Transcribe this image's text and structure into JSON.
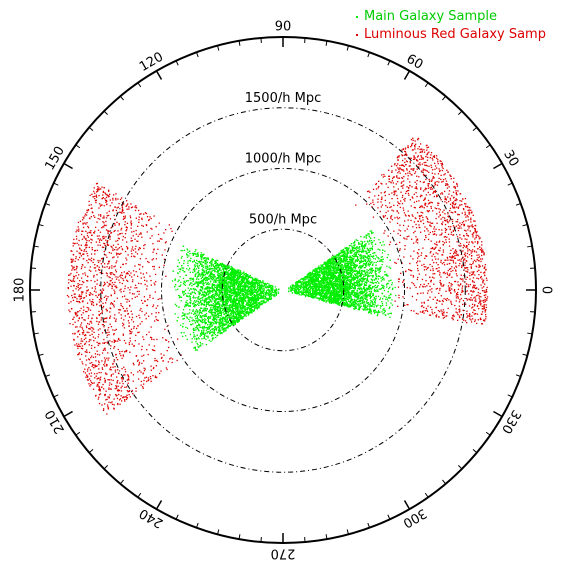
{
  "chart_data": {
    "type": "scatter",
    "title": "",
    "coordinate_system": "polar",
    "angle_tick_labels": [
      "0",
      "30",
      "60",
      "90",
      "120",
      "150",
      "180",
      "210",
      "240",
      "270",
      "300",
      "330"
    ],
    "angle_ticks_deg": [
      0,
      30,
      60,
      90,
      120,
      150,
      180,
      210,
      240,
      270,
      300,
      330
    ],
    "radius_rings": [
      {
        "value": 500,
        "label": "500/h Mpc"
      },
      {
        "value": 1000,
        "label": "1000/h Mpc"
      },
      {
        "value": 1500,
        "label": "1500/h Mpc"
      }
    ],
    "rmax": 2000,
    "legend_position": "top-right",
    "series": [
      {
        "name": "Main Galaxy Sample",
        "color": "#00ee00",
        "wedges": [
          {
            "theta_min_deg": -15,
            "theta_max_deg": 35,
            "r_min": 30,
            "r_max": 950
          },
          {
            "theta_min_deg": 155,
            "theta_max_deg": 215,
            "r_min": 30,
            "r_max": 950
          }
        ],
        "point_density": "approximate"
      },
      {
        "name": "Luminous Red Galaxy Samp",
        "color": "#dd0000",
        "wedges": [
          {
            "theta_min_deg": -10,
            "theta_max_deg": 50,
            "r_min": 900,
            "r_max": 1680
          },
          {
            "theta_min_deg": 150,
            "theta_max_deg": 215,
            "r_min": 950,
            "r_max": 1780
          }
        ],
        "point_density": "approximate"
      }
    ]
  }
}
